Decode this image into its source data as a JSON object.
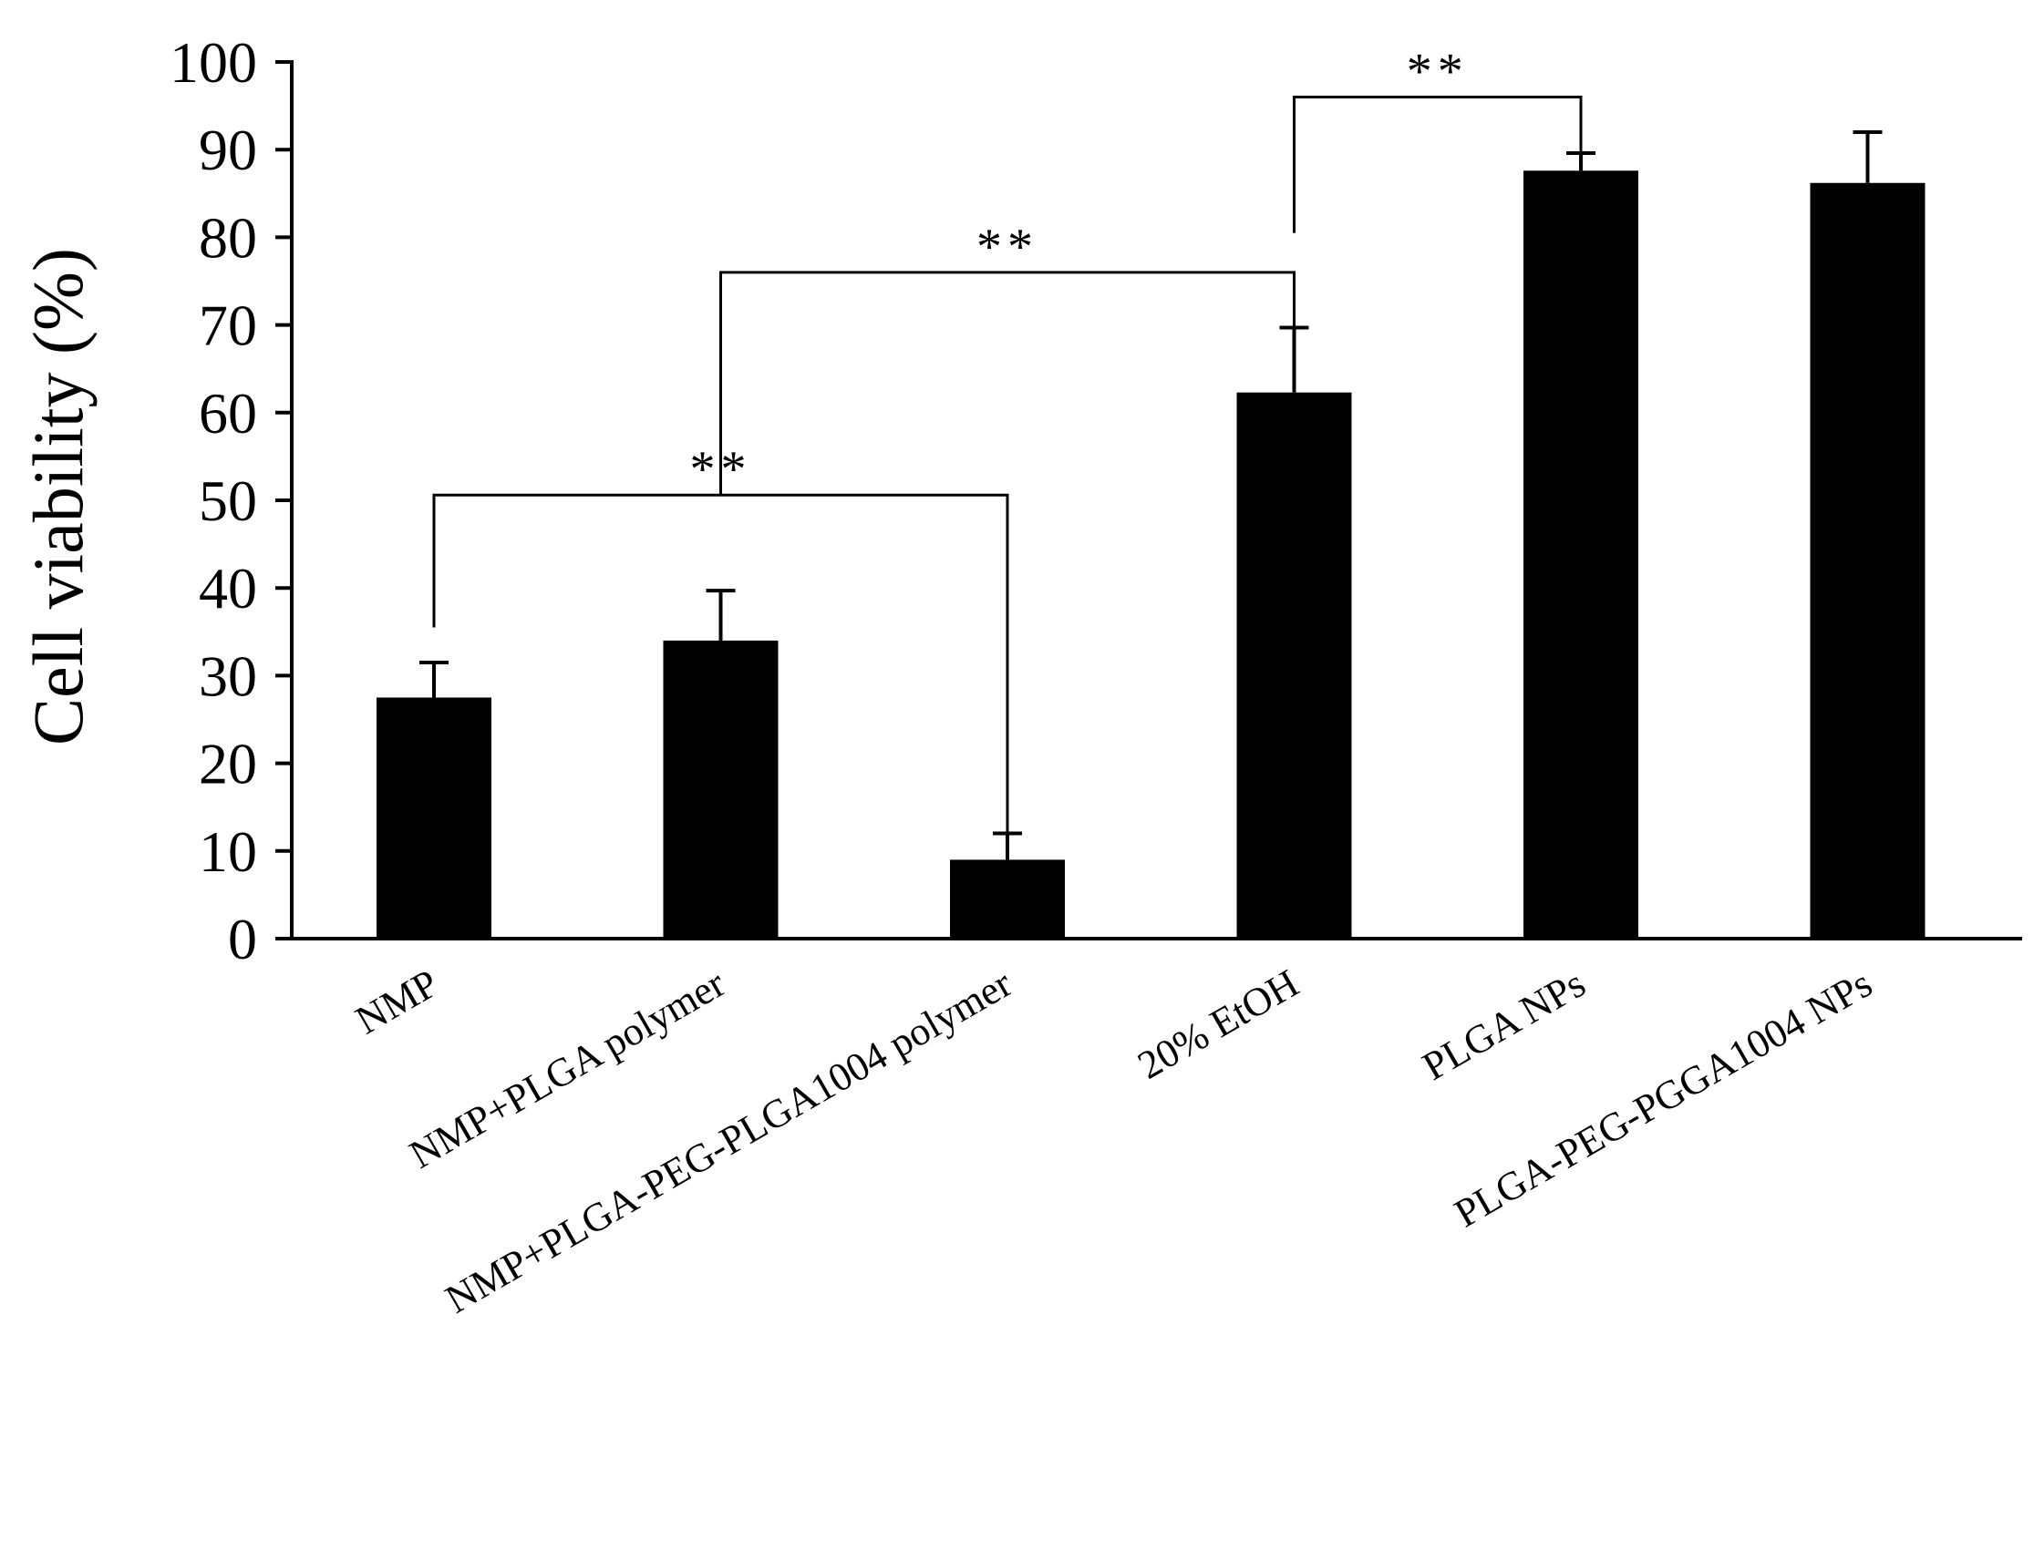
{
  "chart_data": {
    "type": "bar",
    "title": "",
    "xlabel": "",
    "ylabel": "Cell viability (%)",
    "ylim": [
      0,
      100
    ],
    "yticks": [
      0,
      10,
      20,
      30,
      40,
      50,
      60,
      70,
      80,
      90,
      100
    ],
    "grid": false,
    "legend": "none",
    "categories": [
      "NMP",
      "NMP+PLGA polymer",
      "NMP+PLGA-PEG-PLGA1004 polymer",
      "20% EtOH",
      "PLGA NPs",
      "PLGA-PEG-PGGA1004 NPs"
    ],
    "series": [
      {
        "values": [
          27.5,
          34.0,
          9.0,
          62.3,
          87.6,
          86.2
        ],
        "error_upper": [
          4.0,
          5.7,
          3.0,
          7.4,
          2.0,
          5.8
        ],
        "color": "#000000"
      }
    ],
    "significance": [
      {
        "from": 0,
        "to": 2,
        "label": "**"
      },
      {
        "from": 1,
        "to": 3,
        "label": "**"
      },
      {
        "from": 3,
        "to": 4,
        "label": "**"
      }
    ]
  }
}
